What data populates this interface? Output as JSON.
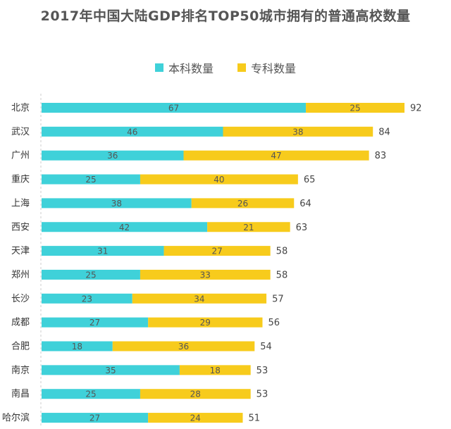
{
  "chart_data": {
    "type": "bar",
    "orientation": "horizontal",
    "stacked": true,
    "title": "2017年中国大陆GDP排名TOP50城市拥有的普通高校数量",
    "legend_position": "top-center",
    "categories": [
      "北京",
      "武汉",
      "广州",
      "重庆",
      "上海",
      "西安",
      "天津",
      "郑州",
      "长沙",
      "成都",
      "合肥",
      "南京",
      "南昌",
      "哈尔滨"
    ],
    "series": [
      {
        "name": "本科数量",
        "color": "#3fd1d9",
        "values": [
          67,
          46,
          36,
          25,
          38,
          42,
          31,
          25,
          23,
          27,
          18,
          35,
          25,
          27
        ]
      },
      {
        "name": "专科数量",
        "color": "#f7cb1c",
        "values": [
          25,
          38,
          47,
          40,
          26,
          21,
          27,
          33,
          34,
          29,
          36,
          18,
          28,
          24
        ]
      }
    ],
    "totals": [
      92,
      84,
      83,
      65,
      64,
      63,
      58,
      58,
      57,
      56,
      54,
      53,
      53,
      51
    ],
    "xlim": [
      0,
      92
    ],
    "grid": false
  }
}
